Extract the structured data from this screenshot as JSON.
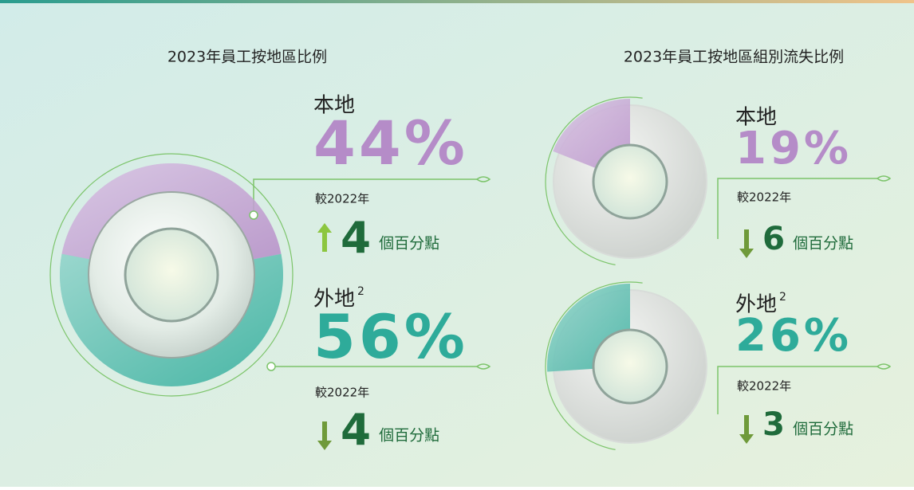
{
  "chart_data": [
    {
      "type": "donut",
      "title": "2023年員工按地區比例",
      "categories": [
        "本地",
        "外地"
      ],
      "category_notes": [
        null,
        "2"
      ],
      "values": [
        44,
        56
      ],
      "value_labels": [
        "44%",
        "56%"
      ],
      "colors": [
        "#b58cc8",
        "#2eab9a"
      ],
      "comparison_label": "較2022年",
      "changes": [
        4,
        4
      ],
      "change_directions": [
        "up",
        "down"
      ],
      "change_unit": "個百分點"
    },
    {
      "type": "gauge",
      "title": "2023年員工按地區組別流失比例",
      "categories": [
        "本地",
        "外地"
      ],
      "category_notes": [
        null,
        "2"
      ],
      "values": [
        19,
        26
      ],
      "value_labels": [
        "19%",
        "26%"
      ],
      "value_range": [
        0,
        100
      ],
      "colors": [
        "#b58cc8",
        "#2eab9a"
      ],
      "comparison_label": "較2022年",
      "changes": [
        6,
        3
      ],
      "change_directions": [
        "down",
        "down"
      ],
      "change_unit": "個百分點"
    }
  ]
}
